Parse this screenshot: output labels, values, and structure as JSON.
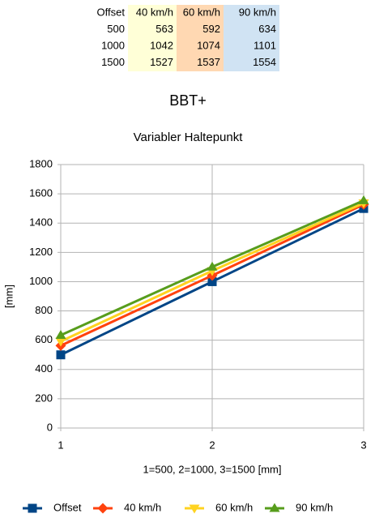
{
  "heading": "BBT+",
  "table": {
    "header": [
      "Offset",
      "40 km/h",
      "60 km/h",
      "90 km/h"
    ],
    "column_colors": [
      null,
      "#ffffd7",
      "#ffd8b2",
      "#d0e3f3"
    ],
    "rows": [
      [
        500,
        563,
        592,
        634
      ],
      [
        1000,
        1042,
        1074,
        1101
      ],
      [
        1500,
        1527,
        1537,
        1554
      ]
    ]
  },
  "chart_data": {
    "type": "line",
    "title": "Variabler Haltepunkt",
    "x_label": "1=500, 2=1000, 3=1500 [mm]",
    "y_label": "[mm]",
    "x": [
      1,
      2,
      3
    ],
    "xlim": [
      1,
      3
    ],
    "xticks": [
      1,
      2,
      3
    ],
    "ylim": [
      0,
      1800
    ],
    "yticks": [
      0,
      200,
      400,
      600,
      800,
      1000,
      1200,
      1400,
      1600,
      1800
    ],
    "grid": true,
    "legend": "bottom",
    "series": [
      {
        "name": "Offset",
        "color": "#004586",
        "marker": "square",
        "values": [
          500,
          1000,
          1500
        ]
      },
      {
        "name": "40 km/h",
        "color": "#ff420e",
        "marker": "diamond",
        "values": [
          563,
          1042,
          1527
        ]
      },
      {
        "name": "60 km/h",
        "color": "#ffd320",
        "marker": "triangle-down",
        "values": [
          592,
          1074,
          1537
        ]
      },
      {
        "name": "90 km/h",
        "color": "#579d1c",
        "marker": "triangle-up",
        "values": [
          634,
          1101,
          1554
        ]
      }
    ]
  }
}
